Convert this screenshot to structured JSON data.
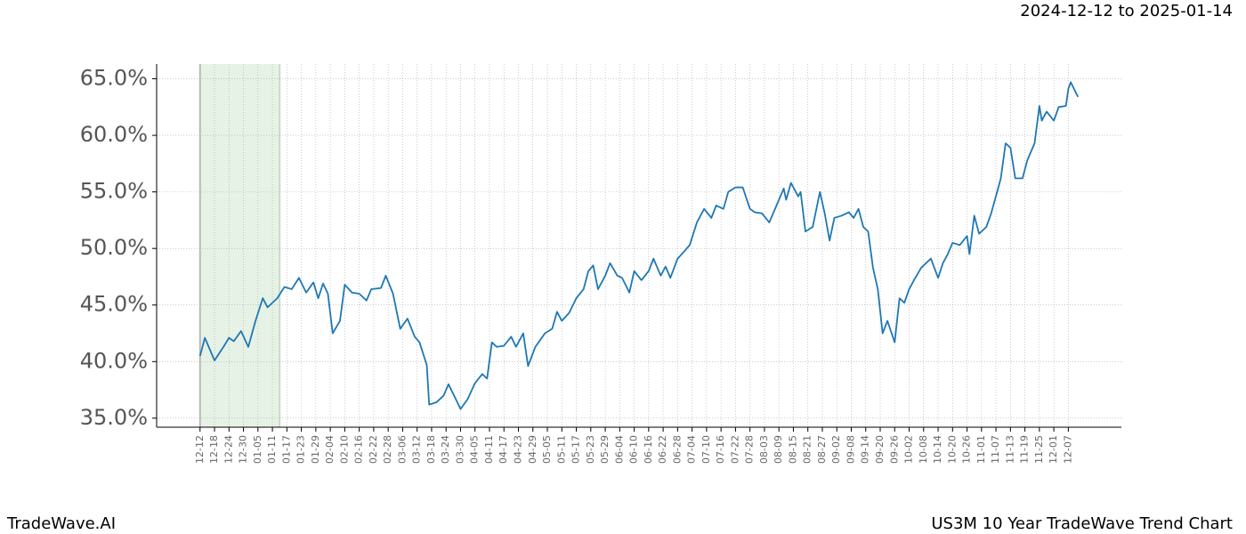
{
  "header": {
    "date_range": "2024-12-12 to 2025-01-14"
  },
  "footer": {
    "brand": "TradeWave.AI",
    "title": "US3M 10 Year TradeWave Trend Chart"
  },
  "chart_data": {
    "type": "line",
    "color": "#1f77b4",
    "grid": true,
    "highlight_x": [
      0,
      33
    ],
    "highlight_color": "#e6f2e6",
    "xlim": [
      -18,
      382
    ],
    "ylim": [
      34.2,
      66.3
    ],
    "yticks": [
      {
        "value": 35,
        "label": "35.0%"
      },
      {
        "value": 40,
        "label": "40.0%"
      },
      {
        "value": 45,
        "label": "45.0%"
      },
      {
        "value": 50,
        "label": "50.0%"
      },
      {
        "value": 55,
        "label": "55.0%"
      },
      {
        "value": 60,
        "label": "60.0%"
      },
      {
        "value": 65,
        "label": "65.0%"
      }
    ],
    "xticks": [
      {
        "value": 0,
        "label": "12-12"
      },
      {
        "value": 6,
        "label": "12-18"
      },
      {
        "value": 12,
        "label": "12-24"
      },
      {
        "value": 18,
        "label": "12-30"
      },
      {
        "value": 24,
        "label": "01-05"
      },
      {
        "value": 30,
        "label": "01-11"
      },
      {
        "value": 36,
        "label": "01-17"
      },
      {
        "value": 42,
        "label": "01-23"
      },
      {
        "value": 48,
        "label": "01-29"
      },
      {
        "value": 54,
        "label": "02-04"
      },
      {
        "value": 60,
        "label": "02-10"
      },
      {
        "value": 66,
        "label": "02-16"
      },
      {
        "value": 72,
        "label": "02-22"
      },
      {
        "value": 78,
        "label": "02-28"
      },
      {
        "value": 84,
        "label": "03-06"
      },
      {
        "value": 90,
        "label": "03-12"
      },
      {
        "value": 96,
        "label": "03-18"
      },
      {
        "value": 102,
        "label": "03-24"
      },
      {
        "value": 108,
        "label": "03-30"
      },
      {
        "value": 114,
        "label": "04-05"
      },
      {
        "value": 120,
        "label": "04-11"
      },
      {
        "value": 126,
        "label": "04-17"
      },
      {
        "value": 132,
        "label": "04-23"
      },
      {
        "value": 138,
        "label": "04-29"
      },
      {
        "value": 144,
        "label": "05-05"
      },
      {
        "value": 150,
        "label": "05-11"
      },
      {
        "value": 156,
        "label": "05-17"
      },
      {
        "value": 162,
        "label": "05-23"
      },
      {
        "value": 168,
        "label": "05-29"
      },
      {
        "value": 174,
        "label": "06-04"
      },
      {
        "value": 180,
        "label": "06-10"
      },
      {
        "value": 186,
        "label": "06-16"
      },
      {
        "value": 192,
        "label": "06-22"
      },
      {
        "value": 198,
        "label": "06-28"
      },
      {
        "value": 204,
        "label": "07-04"
      },
      {
        "value": 210,
        "label": "07-10"
      },
      {
        "value": 216,
        "label": "07-16"
      },
      {
        "value": 222,
        "label": "07-22"
      },
      {
        "value": 228,
        "label": "07-28"
      },
      {
        "value": 234,
        "label": "08-03"
      },
      {
        "value": 240,
        "label": "08-09"
      },
      {
        "value": 246,
        "label": "08-15"
      },
      {
        "value": 252,
        "label": "08-21"
      },
      {
        "value": 258,
        "label": "08-27"
      },
      {
        "value": 264,
        "label": "09-02"
      },
      {
        "value": 270,
        "label": "09-08"
      },
      {
        "value": 276,
        "label": "09-14"
      },
      {
        "value": 282,
        "label": "09-20"
      },
      {
        "value": 288,
        "label": "09-26"
      },
      {
        "value": 294,
        "label": "10-02"
      },
      {
        "value": 300,
        "label": "10-08"
      },
      {
        "value": 306,
        "label": "10-14"
      },
      {
        "value": 312,
        "label": "10-20"
      },
      {
        "value": 318,
        "label": "10-26"
      },
      {
        "value": 324,
        "label": "11-01"
      },
      {
        "value": 330,
        "label": "11-07"
      },
      {
        "value": 336,
        "label": "11-13"
      },
      {
        "value": 342,
        "label": "11-19"
      },
      {
        "value": 348,
        "label": "11-25"
      },
      {
        "value": 354,
        "label": "12-01"
      },
      {
        "value": 360,
        "label": "12-07"
      }
    ],
    "x": [
      0,
      2,
      6,
      10,
      12,
      14,
      17,
      20,
      23,
      26,
      28,
      32,
      35,
      38,
      41,
      44,
      47,
      49,
      51,
      53,
      55,
      58,
      60,
      63,
      66,
      69,
      71,
      75,
      77,
      80,
      83,
      86,
      89,
      91,
      94,
      95,
      98,
      101,
      103,
      106,
      108,
      111,
      114,
      117,
      119,
      121,
      123,
      126,
      129,
      131,
      134,
      136,
      139,
      143,
      146,
      148,
      150,
      153,
      156,
      159,
      161,
      163,
      165,
      168,
      170,
      173,
      175,
      178,
      180,
      183,
      186,
      188,
      191,
      193,
      195,
      198,
      201,
      203,
      206,
      209,
      212,
      214,
      217,
      219,
      222,
      225,
      228,
      230,
      233,
      236,
      239,
      242,
      243,
      245,
      248,
      249,
      251,
      254,
      257,
      259,
      261,
      263,
      266,
      269,
      271,
      273,
      275,
      277,
      279,
      281,
      283,
      285,
      288,
      290,
      292,
      294,
      296,
      299,
      301,
      303,
      306,
      308,
      310,
      312,
      315,
      318,
      319,
      321,
      323,
      326,
      328,
      331,
      332,
      334,
      336,
      338,
      341,
      343,
      346,
      348,
      349,
      351,
      354,
      356,
      359,
      360,
      361,
      364
    ],
    "values": [
      40.5,
      42.1,
      40.1,
      41.4,
      42.1,
      41.8,
      42.7,
      41.3,
      43.6,
      45.6,
      44.8,
      45.6,
      46.6,
      46.4,
      47.4,
      46.1,
      47.0,
      45.6,
      46.9,
      46.0,
      42.5,
      43.6,
      46.8,
      46.1,
      46.0,
      45.4,
      46.4,
      46.5,
      47.6,
      46.0,
      42.9,
      43.8,
      42.2,
      41.7,
      39.7,
      36.2,
      36.4,
      37.0,
      38.0,
      36.7,
      35.8,
      36.7,
      38.1,
      38.9,
      38.5,
      41.7,
      41.3,
      41.4,
      42.2,
      41.3,
      42.5,
      39.6,
      41.3,
      42.5,
      42.9,
      44.4,
      43.6,
      44.3,
      45.6,
      46.4,
      48.0,
      48.5,
      46.4,
      47.6,
      48.7,
      47.6,
      47.4,
      46.1,
      48.0,
      47.2,
      48.0,
      49.1,
      47.6,
      48.4,
      47.4,
      49.1,
      49.8,
      50.3,
      52.3,
      53.5,
      52.7,
      53.8,
      53.5,
      55.0,
      55.4,
      55.4,
      53.5,
      53.2,
      53.1,
      52.3,
      53.8,
      55.3,
      54.3,
      55.8,
      54.6,
      55.0,
      51.5,
      51.9,
      55.0,
      53.1,
      50.7,
      52.7,
      52.9,
      53.2,
      52.7,
      53.5,
      51.9,
      51.5,
      48.3,
      46.4,
      42.5,
      43.6,
      41.7,
      45.6,
      45.2,
      46.4,
      47.2,
      48.3,
      48.7,
      49.1,
      47.4,
      48.7,
      49.5,
      50.5,
      50.3,
      51.1,
      49.5,
      52.9,
      51.3,
      51.9,
      53.1,
      55.4,
      56.2,
      59.3,
      58.9,
      56.2,
      56.2,
      57.8,
      59.3,
      62.6,
      61.3,
      62.1,
      61.3,
      62.5,
      62.6,
      64.1,
      64.7,
      63.4
    ]
  }
}
